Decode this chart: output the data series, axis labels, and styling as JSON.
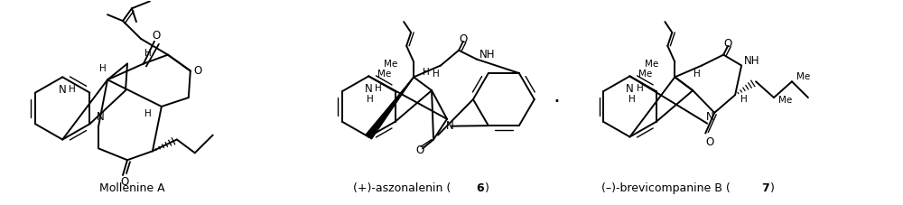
{
  "background_color": "#ffffff",
  "fig_width": 10.0,
  "fig_height": 2.27,
  "dpi": 100,
  "label1": "Mollenine A",
  "label2_pre": "(+)-aszonalenin (",
  "label2_num": "6",
  "label2_post": ")",
  "label3_pre": "(–)-brevicompanine B (",
  "label3_num": "7",
  "label3_post": ")",
  "dot": "·"
}
